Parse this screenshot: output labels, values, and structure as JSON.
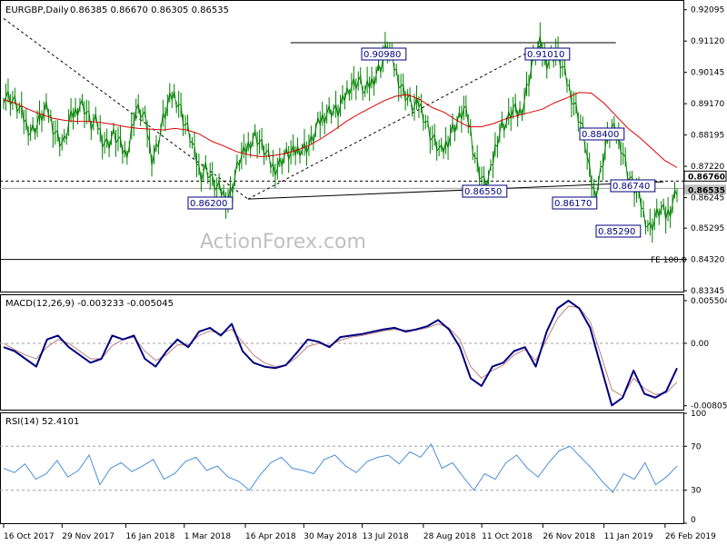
{
  "header": {
    "symbol": "EURGBP,Daily",
    "ohlc": "0.86385 0.86670 0.86305 0.86535"
  },
  "watermark": "ActionForex.com",
  "chart_data": [
    {
      "type": "line",
      "title": "EURGBP,Daily 0.86385 0.86670 0.86305 0.86535",
      "x_ticks": [
        "16 Oct 2017",
        "29 Nov 2017",
        "16 Jan 2018",
        "1 Mar 2018",
        "16 Apr 2018",
        "30 May 2018",
        "13 Jul 2018",
        "28 Aug 2018",
        "11 Oct 2018",
        "26 Nov 2018",
        "11 Jan 2019",
        "26 Feb 2019"
      ],
      "y_ticks": [
        "0.92095",
        "0.91120",
        "0.90145",
        "0.89170",
        "0.88195",
        "0.87220",
        "0.86245",
        "0.85295",
        "0.84320",
        "0.83345"
      ],
      "ylim": [
        0.8332,
        0.9237
      ],
      "price_series": {
        "name": "Price",
        "color": "#008000",
        "values": [
          0.8945,
          0.894,
          0.892,
          0.8895,
          0.886,
          0.883,
          0.885,
          0.888,
          0.89,
          0.885,
          0.881,
          0.879,
          0.886,
          0.889,
          0.892,
          0.89,
          0.885,
          0.886,
          0.881,
          0.879,
          0.882,
          0.88,
          0.876,
          0.879,
          0.89,
          0.889,
          0.886,
          0.875,
          0.878,
          0.886,
          0.891,
          0.895,
          0.892,
          0.886,
          0.882,
          0.875,
          0.87,
          0.872,
          0.868,
          0.865,
          0.864,
          0.862,
          0.867,
          0.874,
          0.876,
          0.88,
          0.882,
          0.879,
          0.876,
          0.872,
          0.872,
          0.875,
          0.876,
          0.876,
          0.878,
          0.878,
          0.879,
          0.883,
          0.887,
          0.889,
          0.89,
          0.889,
          0.892,
          0.897,
          0.898,
          0.899,
          0.895,
          0.898,
          0.901,
          0.904,
          0.9098,
          0.905,
          0.9,
          0.896,
          0.893,
          0.89,
          0.892,
          0.887,
          0.882,
          0.879,
          0.876,
          0.88,
          0.884,
          0.886,
          0.89,
          0.886,
          0.876,
          0.87,
          0.866,
          0.87,
          0.88,
          0.885,
          0.886,
          0.89,
          0.888,
          0.892,
          0.9,
          0.907,
          0.9101,
          0.905,
          0.906,
          0.908,
          0.903,
          0.898,
          0.893,
          0.888,
          0.882,
          0.87,
          0.863,
          0.87,
          0.879,
          0.884,
          0.882,
          0.878,
          0.87,
          0.866,
          0.863,
          0.857,
          0.8529,
          0.856,
          0.859,
          0.8565,
          0.86,
          0.8654
        ]
      },
      "ma_series": {
        "name": "Moving Average",
        "color": "#dd0000",
        "values": [
          0.893,
          0.8918,
          0.89,
          0.8885,
          0.8872,
          0.8865,
          0.8862,
          0.8862,
          0.8858,
          0.8852,
          0.8845,
          0.884,
          0.8838,
          0.8835,
          0.884,
          0.8835,
          0.8822,
          0.88,
          0.8785,
          0.8768,
          0.8758,
          0.8752,
          0.8755,
          0.8762,
          0.8773,
          0.8788,
          0.881,
          0.8835,
          0.8862,
          0.8885,
          0.8905,
          0.8925,
          0.894,
          0.8945,
          0.893,
          0.8905,
          0.889,
          0.8865,
          0.8845,
          0.8845,
          0.8855,
          0.887,
          0.888,
          0.889,
          0.89,
          0.892,
          0.8935,
          0.8952,
          0.895,
          0.892,
          0.888,
          0.884,
          0.881,
          0.8775,
          0.874,
          0.8718
        ]
      },
      "horizontal_lines": [
        {
          "value": 0.8676,
          "style": "dashed"
        },
        {
          "value": 0.86535,
          "style": "solid"
        },
        {
          "value": 0.8432,
          "label": "FE 100.0"
        }
      ],
      "trendlines": [
        {
          "from": [
            "2017-10-16",
            0.9182
          ],
          "to": [
            "2018-04-18",
            0.862
          ],
          "style": "dashed"
        },
        {
          "from": [
            "2018-04-18",
            0.862
          ],
          "to": [
            "2018-11-26",
            0.9101
          ],
          "style": "dashed"
        },
        {
          "from": [
            "2018-05-20",
            0.9107
          ],
          "to": [
            "2019-01-20",
            0.9107
          ],
          "style": "solid"
        },
        {
          "from": [
            "2018-04-18",
            0.862
          ],
          "to": [
            "2019-02-25",
            0.8674
          ],
          "style": "solid"
        }
      ],
      "annotations": [
        {
          "text": "0.90980"
        },
        {
          "text": "0.91010"
        },
        {
          "text": "0.88400"
        },
        {
          "text": "0.86200"
        },
        {
          "text": "0.86550"
        },
        {
          "text": "0.86740"
        },
        {
          "text": "0.86170"
        },
        {
          "text": "0.85290"
        },
        {
          "text": "FE 100.0"
        }
      ],
      "price_labels": [
        "0.86760",
        "0.86535"
      ]
    },
    {
      "type": "line",
      "title": "MACD(12,26,9) -0.003233 -0.005045",
      "y_ticks": [
        "0.005504",
        "0.00",
        "-0.00805"
      ],
      "ylim": [
        -0.00855,
        0.0062
      ],
      "series": [
        {
          "name": "MACD",
          "color": "#000080",
          "values": [
            -0.0005,
            -0.001,
            -0.002,
            -0.003,
            0.0005,
            0.001,
            -0.0005,
            -0.0015,
            -0.0025,
            -0.002,
            0.001,
            0.0005,
            0.001,
            -0.002,
            -0.003,
            -0.001,
            0.0005,
            -0.0005,
            0.0015,
            0.002,
            0.001,
            0.0025,
            -0.001,
            -0.0025,
            -0.003,
            -0.0032,
            -0.0028,
            -0.0012,
            0.0005,
            0.0002,
            -0.0005,
            0.0008,
            0.001,
            0.0012,
            0.0015,
            0.0018,
            0.002,
            0.0015,
            0.0018,
            0.0022,
            0.003,
            0.0018,
            -0.0005,
            -0.0045,
            -0.0055,
            -0.003,
            -0.0025,
            -0.001,
            -0.0005,
            -0.003,
            0.0015,
            0.0045,
            0.0055,
            0.0045,
            0.002,
            -0.003,
            -0.008,
            -0.007,
            -0.0035,
            -0.0065,
            -0.007,
            -0.0062,
            -0.0032
          ]
        },
        {
          "name": "Signal",
          "color": "#c08080",
          "values": [
            0.0,
            -0.0008,
            -0.0015,
            -0.002,
            -0.0005,
            0.0005,
            0.0,
            -0.001,
            -0.002,
            -0.002,
            -0.0003,
            0.0005,
            0.0008,
            -0.001,
            -0.0022,
            -0.0015,
            -0.0002,
            -0.0002,
            0.001,
            0.0016,
            0.0012,
            0.0018,
            0.0002,
            -0.0015,
            -0.0025,
            -0.003,
            -0.0028,
            -0.0018,
            -0.0004,
            0.0,
            -0.0003,
            0.0004,
            0.0008,
            0.001,
            0.0013,
            0.0016,
            0.0018,
            0.0017,
            0.0017,
            0.002,
            0.0025,
            0.002,
            0.0005,
            -0.003,
            -0.0045,
            -0.0035,
            -0.0028,
            -0.0015,
            -0.0008,
            -0.0022,
            0.0005,
            0.0032,
            0.0048,
            0.0046,
            0.0028,
            -0.0015,
            -0.006,
            -0.0068,
            -0.0045,
            -0.0058,
            -0.0066,
            -0.0064,
            -0.005
          ]
        }
      ]
    },
    {
      "type": "line",
      "title": "RSI(14) 52.4101",
      "y_ticks": [
        "100",
        "70",
        "30",
        "0"
      ],
      "ylim": [
        0,
        100
      ],
      "series": [
        {
          "name": "RSI",
          "color": "#4a90d9",
          "values": [
            50,
            46,
            54,
            40,
            45,
            57,
            42,
            48,
            62,
            35,
            50,
            55,
            47,
            52,
            58,
            40,
            45,
            56,
            60,
            48,
            52,
            42,
            38,
            30,
            44,
            55,
            60,
            50,
            48,
            45,
            58,
            62,
            52,
            46,
            56,
            60,
            62,
            54,
            65,
            60,
            72,
            50,
            55,
            42,
            30,
            45,
            40,
            55,
            62,
            50,
            42,
            55,
            66,
            70,
            60,
            50,
            38,
            28,
            45,
            40,
            55,
            35,
            42,
            52
          ]
        }
      ],
      "reference_lines": [
        70,
        30
      ]
    }
  ],
  "colors": {
    "price": "#008000",
    "ma": "#dd0000",
    "macd": "#000080",
    "signal": "#c08080",
    "rsi": "#4a90d9",
    "annotation": "#000080"
  }
}
